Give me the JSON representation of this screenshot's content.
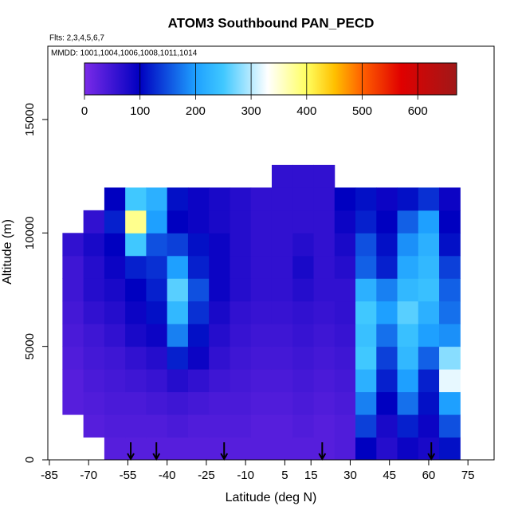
{
  "chart_data": {
    "type": "heatmap",
    "title": "ATOM3 Southbound PAN_PECD",
    "annotations": [
      "Flts: 2,3,4,5,6,7",
      "MMDD: 1001,1004,1006,1008,1011,1014"
    ],
    "x_label": "Latitude (deg N)",
    "y_label": "Altitude (m)",
    "xlim": [
      -85.6,
      85
    ],
    "ylim": [
      0,
      18230
    ],
    "xticks": [
      -85,
      -70,
      -55,
      -40,
      -25,
      -10,
      5,
      15,
      30,
      45,
      60,
      75
    ],
    "yticks": [
      0,
      5000,
      10000,
      15000
    ],
    "x_edges": [
      -80,
      -72,
      -64,
      -56,
      -48,
      -40,
      -32,
      -24,
      -16,
      -8,
      0,
      8,
      16,
      24,
      32,
      40,
      48,
      56,
      64,
      72
    ],
    "y_edges": [
      0,
      1000,
      2000,
      3000,
      4000,
      5000,
      6000,
      7000,
      8000,
      9000,
      10000,
      11000,
      12000,
      13000
    ],
    "z": [
      [
        null,
        null,
        30,
        30,
        30,
        30,
        30,
        30,
        30,
        30,
        30,
        30,
        30,
        35,
        100,
        70,
        90,
        80,
        110
      ],
      [
        null,
        30,
        35,
        35,
        35,
        40,
        35,
        35,
        35,
        30,
        30,
        35,
        30,
        35,
        140,
        80,
        120,
        90,
        150
      ],
      [
        30,
        35,
        40,
        40,
        45,
        50,
        45,
        40,
        40,
        35,
        35,
        40,
        35,
        40,
        180,
        100,
        170,
        110,
        200
      ],
      [
        30,
        40,
        45,
        50,
        55,
        70,
        60,
        50,
        45,
        40,
        40,
        45,
        40,
        45,
        220,
        120,
        200,
        120,
        320
      ],
      [
        35,
        45,
        50,
        60,
        70,
        120,
        90,
        60,
        50,
        45,
        45,
        50,
        45,
        50,
        250,
        140,
        230,
        160,
        280
      ],
      [
        40,
        50,
        60,
        80,
        90,
        180,
        110,
        70,
        55,
        50,
        50,
        55,
        50,
        55,
        240,
        170,
        240,
        200,
        190
      ],
      [
        45,
        60,
        70,
        90,
        110,
        230,
        130,
        80,
        60,
        55,
        55,
        60,
        55,
        60,
        250,
        200,
        260,
        220,
        170
      ],
      [
        50,
        70,
        80,
        100,
        120,
        260,
        150,
        90,
        70,
        60,
        60,
        70,
        60,
        60,
        220,
        180,
        230,
        240,
        160
      ],
      [
        50,
        70,
        90,
        120,
        130,
        200,
        120,
        90,
        70,
        60,
        60,
        80,
        60,
        70,
        160,
        120,
        210,
        230,
        140
      ],
      [
        60,
        80,
        100,
        250,
        150,
        140,
        110,
        90,
        70,
        60,
        60,
        70,
        60,
        80,
        150,
        110,
        190,
        220,
        110
      ],
      [
        null,
        60,
        120,
        380,
        200,
        100,
        90,
        80,
        70,
        60,
        60,
        60,
        60,
        90,
        120,
        100,
        160,
        200,
        100
      ],
      [
        null,
        null,
        100,
        250,
        220,
        110,
        90,
        80,
        70,
        60,
        60,
        60,
        60,
        100,
        110,
        90,
        110,
        130,
        90
      ],
      [
        null,
        null,
        null,
        null,
        null,
        null,
        null,
        null,
        null,
        null,
        60,
        60,
        60,
        null,
        null,
        null,
        null,
        null,
        null
      ]
    ],
    "colorscale": [
      [
        0,
        "#7b2be8"
      ],
      [
        100,
        "#0000c0"
      ],
      [
        200,
        "#1ea0ff"
      ],
      [
        250,
        "#40c8ff"
      ],
      [
        330,
        "#ffffff"
      ],
      [
        400,
        "#ffff60"
      ],
      [
        450,
        "#ffc000"
      ],
      [
        500,
        "#ff6000"
      ],
      [
        570,
        "#e00000"
      ],
      [
        670,
        "#a01818"
      ]
    ],
    "colorbar": {
      "lim": [
        0,
        670
      ],
      "ticks": [
        0,
        100,
        200,
        300,
        400,
        500,
        600
      ]
    },
    "flight_markers": [
      -53.9,
      -44.1,
      -18.2,
      19.3,
      61
    ]
  }
}
